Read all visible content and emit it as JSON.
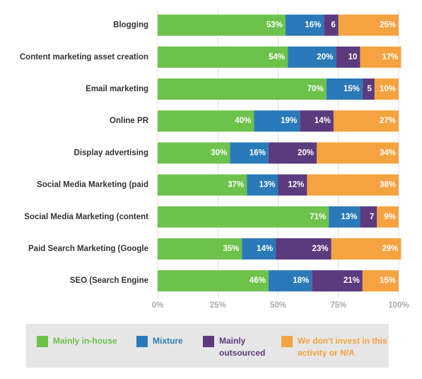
{
  "chart_data": {
    "type": "stacked-bar-horizontal",
    "categories": [
      "Blogging",
      "Content marketing asset creation",
      "Email marketing",
      "Online PR",
      "Display advertising",
      "Social Media Marketing (paid",
      "Social Media Marketing (content",
      "Paid Search Marketing (Google",
      "SEO (Search Engine"
    ],
    "series": [
      {
        "name": "Mainly in-house",
        "color": "#6cc24a",
        "values": [
          53,
          54,
          70,
          40,
          30,
          37,
          71,
          35,
          46
        ],
        "value_labels": [
          "53%",
          "54%",
          "70%",
          "40%",
          "30%",
          "37%",
          "71%",
          "35%",
          "46%"
        ]
      },
      {
        "name": "Mixture",
        "color": "#2a7ab9",
        "values": [
          16,
          20,
          15,
          19,
          16,
          13,
          13,
          14,
          18
        ],
        "value_labels": [
          "16%",
          "20%",
          "15%",
          "19%",
          "16%",
          "13%",
          "13%",
          "14%",
          "18%"
        ]
      },
      {
        "name": "Mainly outsourced",
        "color": "#5b3a7e",
        "values": [
          6,
          10,
          5,
          14,
          20,
          12,
          7,
          23,
          21
        ],
        "value_labels": [
          "6",
          "10",
          "5",
          "14%",
          "20%",
          "12%",
          "7",
          "23%",
          "21%"
        ]
      },
      {
        "name": "We don't invest in this activity or N/A",
        "color": "#f4a340",
        "values": [
          25,
          17,
          10,
          27,
          34,
          38,
          9,
          29,
          15
        ],
        "value_labels": [
          "25%",
          "17%",
          "10%",
          "27%",
          "34%",
          "38%",
          "9%",
          "29%",
          "15%"
        ]
      }
    ],
    "xlim": [
      0,
      100
    ],
    "xticks": [
      {
        "value": 0,
        "label": "0%"
      },
      {
        "value": 25,
        "label": "25%"
      },
      {
        "value": 50,
        "label": "50%"
      },
      {
        "value": 75,
        "label": "75%"
      },
      {
        "value": 100,
        "label": "100%"
      }
    ],
    "grid": true,
    "legend": "bottom"
  }
}
